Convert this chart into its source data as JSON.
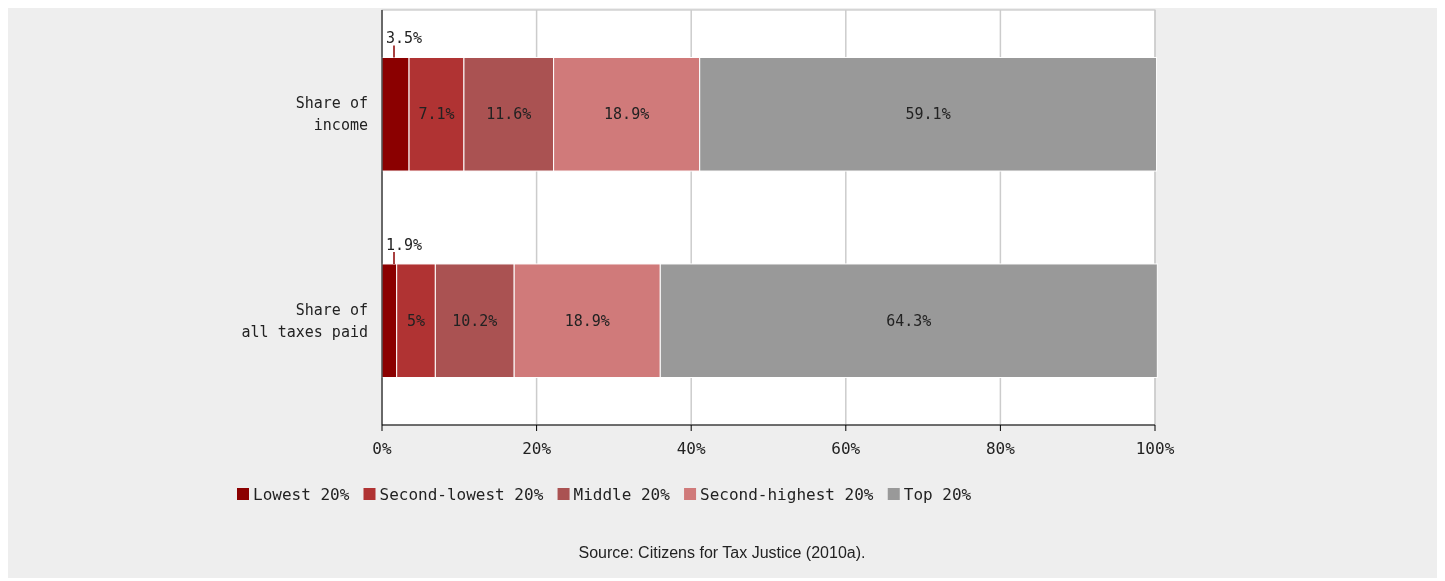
{
  "chart_data": {
    "type": "bar",
    "orientation": "horizontal",
    "stacked": true,
    "categories": [
      "Share of income",
      "Share of all taxes paid"
    ],
    "series": [
      {
        "name": "Lowest 20%",
        "color": "#8b0000",
        "values": [
          3.5,
          1.9
        ],
        "value_labels": [
          "3.5%",
          "1.9%"
        ]
      },
      {
        "name": "Second-lowest 20%",
        "color": "#b03333",
        "values": [
          7.1,
          5
        ],
        "value_labels": [
          "7.1%",
          "5%"
        ]
      },
      {
        "name": "Middle 20%",
        "color": "#aa5252",
        "values": [
          11.6,
          10.2
        ],
        "value_labels": [
          "11.6%",
          "10.2%"
        ]
      },
      {
        "name": "Second-highest 20%",
        "color": "#d07a7a",
        "values": [
          18.9,
          18.9
        ],
        "value_labels": [
          "18.9%",
          "18.9%"
        ]
      },
      {
        "name": "Top 20%",
        "color": "#999999",
        "values": [
          59.1,
          64.3
        ],
        "value_labels": [
          "59.1%",
          "64.3%"
        ]
      }
    ],
    "xlim": [
      0,
      100
    ],
    "xticks": [
      {
        "value": 0,
        "label": "0%"
      },
      {
        "value": 20,
        "label": "20%"
      },
      {
        "value": 40,
        "label": "40%"
      },
      {
        "value": 60,
        "label": "60%"
      },
      {
        "value": 80,
        "label": "80%"
      },
      {
        "value": 100,
        "label": "100%"
      }
    ],
    "grid": "x",
    "legend": "bottom",
    "annotations": [
      "Source: Citizens for Tax Justice (2010a)."
    ]
  }
}
